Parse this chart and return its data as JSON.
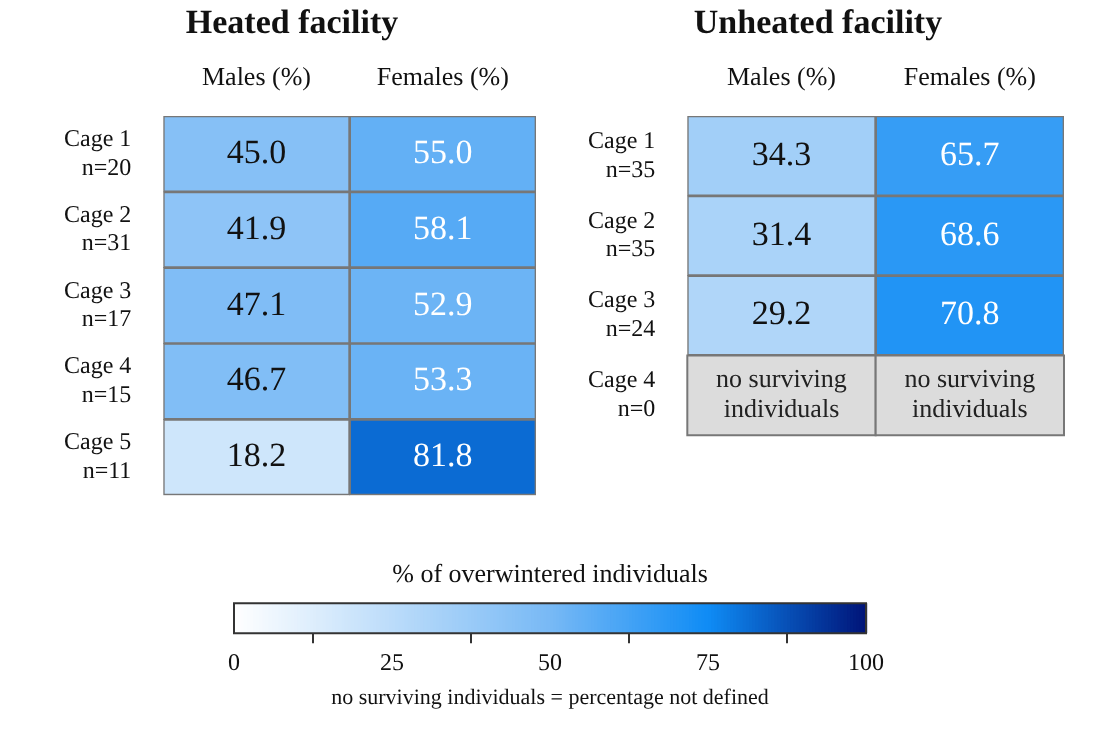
{
  "chart_data": [
    {
      "type": "heatmap",
      "title": "Heated facility",
      "categories": [
        "Males (%)",
        "Females (%)"
      ],
      "y_categories": [
        "Cage 1\nn=20",
        "Cage 2\nn=31",
        "Cage 3\nn=17",
        "Cage 4\nn=15",
        "Cage 5\nn=11"
      ],
      "cells": [
        [
          45.0,
          55.0
        ],
        [
          41.9,
          58.1
        ],
        [
          47.1,
          52.9
        ],
        [
          46.7,
          53.3
        ],
        [
          18.2,
          81.8
        ]
      ],
      "cell_labels": [
        [
          "45.0",
          "55.0"
        ],
        [
          "41.9",
          "58.1"
        ],
        [
          "47.1",
          "52.9"
        ],
        [
          "46.7",
          "53.3"
        ],
        [
          "18.2",
          "81.8"
        ]
      ],
      "clabel": "% of overwintered individuals",
      "clim": [
        0,
        100
      ],
      "cticks": [
        0,
        25,
        50,
        75,
        100
      ]
    },
    {
      "type": "heatmap",
      "title": "Unheated facility",
      "categories": [
        "Males (%)",
        "Females (%)"
      ],
      "y_categories": [
        "Cage 1\nn=35",
        "Cage 2\nn=35",
        "Cage 3\nn=24",
        "Cage 4\nn=0"
      ],
      "cells": [
        [
          34.3,
          65.7
        ],
        [
          31.4,
          68.6
        ],
        [
          29.2,
          70.8
        ],
        [
          null,
          null
        ]
      ],
      "cell_labels": [
        [
          "34.3",
          "65.7"
        ],
        [
          "31.4",
          "68.6"
        ],
        [
          "29.2",
          "70.8"
        ],
        [
          "no surviving individuals",
          "no surviving individuals"
        ]
      ],
      "annotations": [
        "no surviving individuals = percentage not defined"
      ]
    }
  ]
}
